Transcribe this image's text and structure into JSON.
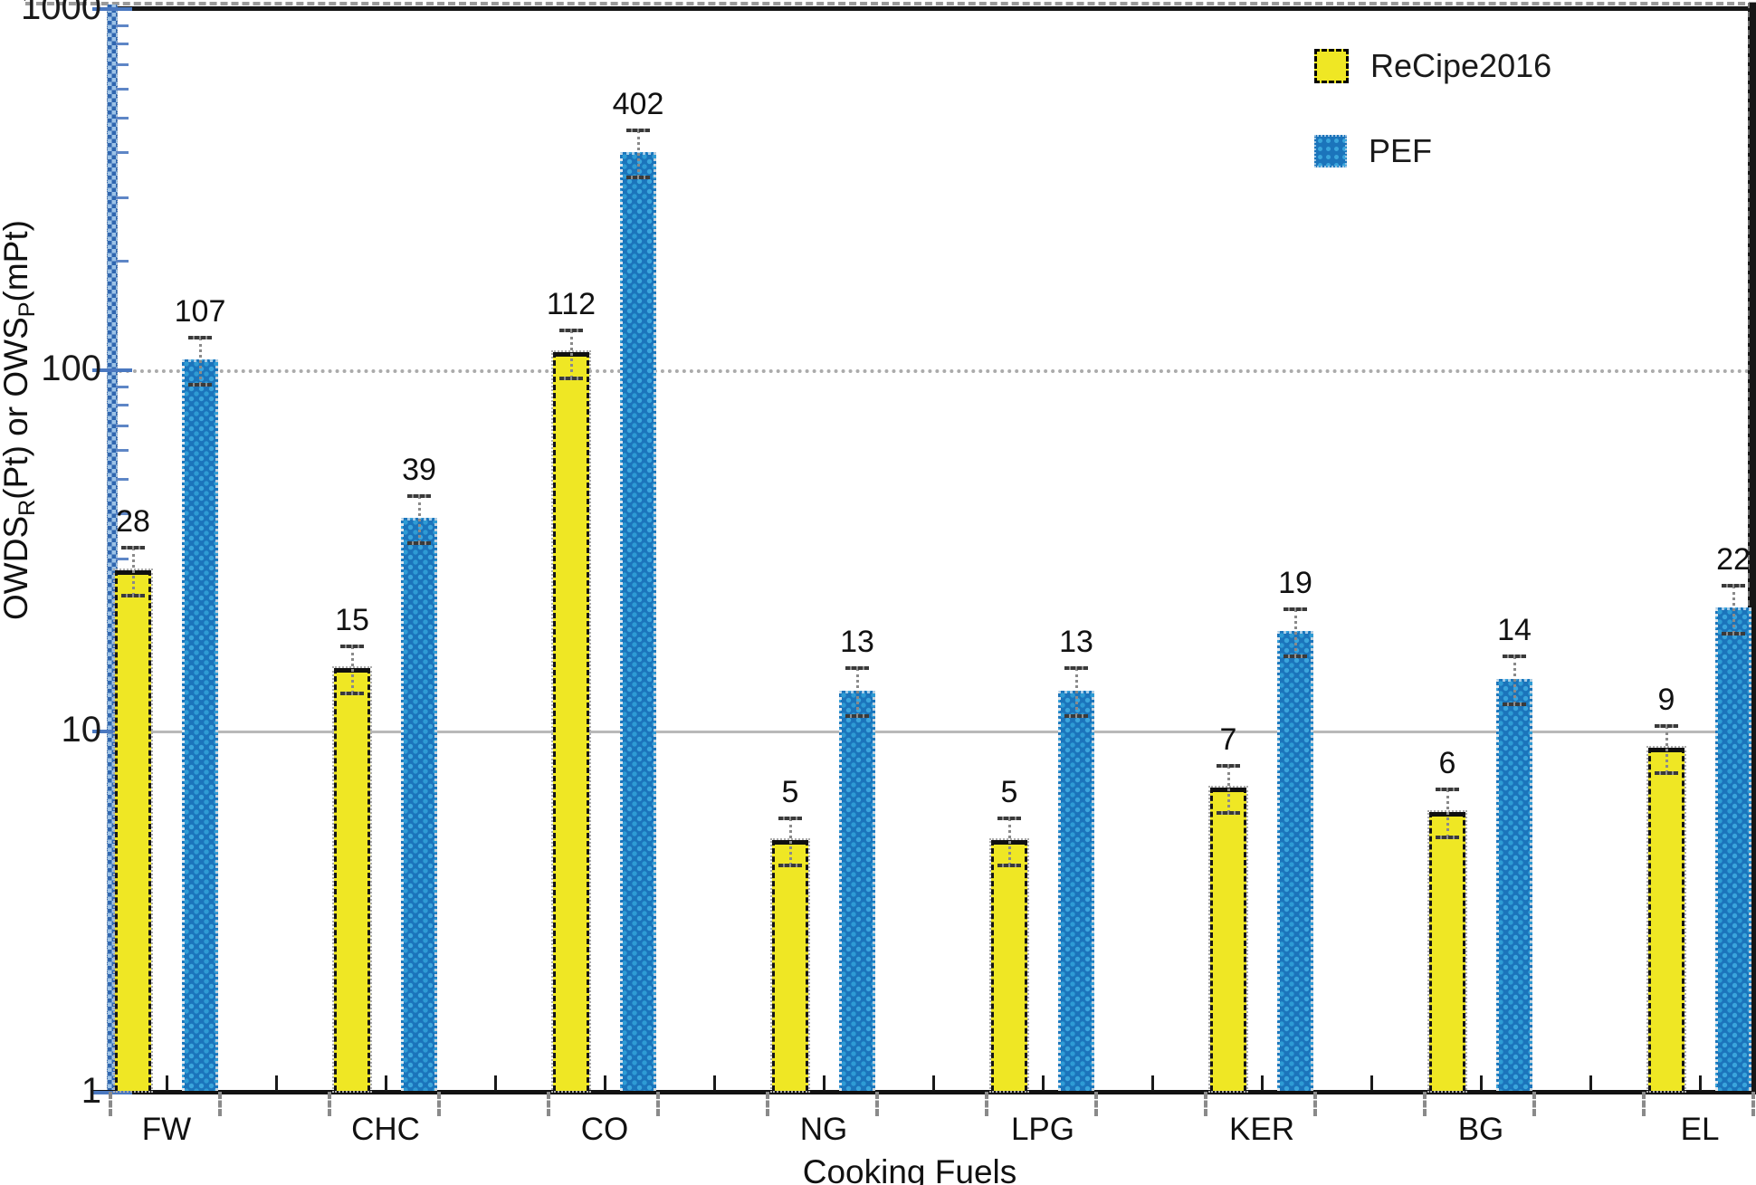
{
  "chart_data": {
    "type": "bar",
    "y_scale": "log",
    "ylim": [
      1,
      1000
    ],
    "y_ticks": [
      1,
      10,
      100,
      1000
    ],
    "xlabel": "Cooking Fuels",
    "ylabel": "OWDSR(Pt) or OWSP(mPt)",
    "ylabel_rich": [
      {
        "text": "OWDS"
      },
      {
        "sub": "R"
      },
      {
        "text": "(Pt) or OWS"
      },
      {
        "sub": "P"
      },
      {
        "text": "(mPt)"
      }
    ],
    "categories": [
      "FW",
      "CHC",
      "CO",
      "NG",
      "LPG",
      "KER",
      "BG",
      "EL"
    ],
    "series": [
      {
        "name": "ReCipe2016",
        "color": "#EFE724",
        "values": [
          28,
          15,
          112,
          5,
          5,
          7,
          6,
          9
        ]
      },
      {
        "name": "PEF",
        "color": "#1B74BB",
        "texture_dot_color": "#3AA5DC",
        "values": [
          107,
          39,
          402,
          13,
          13,
          19,
          14,
          22
        ]
      }
    ],
    "error_bars": {
      "type": "relative",
      "fraction": 0.15
    },
    "legend_position": "top-right",
    "grid": true,
    "gridlines": [
      {
        "value": 100,
        "style": "dotted"
      },
      {
        "value": 10,
        "style": "solid"
      }
    ]
  },
  "colors": {
    "recipe_yellow": "#EFE724",
    "pef_blue": "#1B74BB",
    "pef_dot": "#3AA5DC",
    "axis_spine_blue_dark": "#2F66B0",
    "axis_spine_blue_light": "#9CC2E6",
    "grid_gray": "#ABABAB",
    "error_gray": "#8A8A8A",
    "frame_black": "#151515"
  }
}
